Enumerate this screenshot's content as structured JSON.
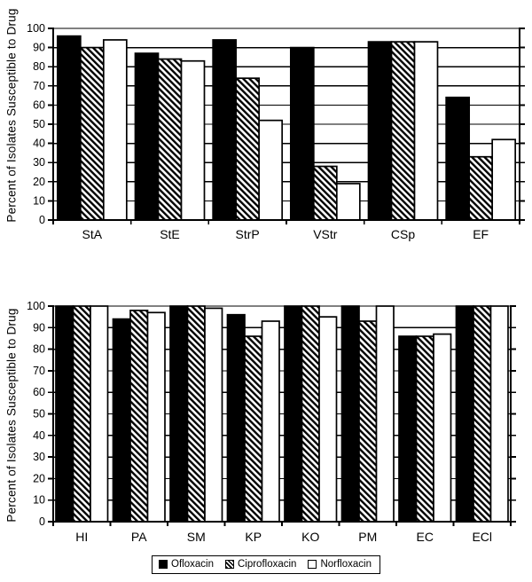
{
  "figure": {
    "background": "#ffffff",
    "ink_color": "#000000",
    "legend": {
      "items": [
        {
          "name": "Ofloxacin",
          "swatch": "solid-black"
        },
        {
          "name": "Ciprofloxacin",
          "swatch": "diagonal-hatch"
        },
        {
          "name": "Norfloxacin",
          "swatch": "open-white"
        }
      ]
    }
  },
  "chart_data": [
    {
      "type": "bar",
      "title": "",
      "xlabel": "",
      "ylabel": "Percent of Isolates Susceptible to Drug",
      "ylim": [
        0,
        100
      ],
      "ytick_interval": 10,
      "grid": true,
      "legend_position": "below-figure",
      "categories": [
        "StA",
        "StE",
        "StrP",
        "VStr",
        "CSp",
        "EF"
      ],
      "series": [
        {
          "name": "Ofloxacin",
          "fill": "solid-black",
          "values": [
            96,
            87,
            94,
            90,
            93,
            64
          ]
        },
        {
          "name": "Ciprofloxacin",
          "fill": "diagonal-hatch",
          "values": [
            90,
            84,
            74,
            28,
            93,
            33
          ]
        },
        {
          "name": "Norfloxacin",
          "fill": "open-white",
          "values": [
            94,
            83,
            52,
            19,
            93,
            42
          ]
        }
      ]
    },
    {
      "type": "bar",
      "title": "",
      "xlabel": "",
      "ylabel": "Percent of Isolates Susceptible to Drug",
      "ylim": [
        0,
        100
      ],
      "ytick_interval": 10,
      "grid": true,
      "legend_position": "below-figure",
      "categories": [
        "HI",
        "PA",
        "SM",
        "KP",
        "KO",
        "PM",
        "EC",
        "ECl"
      ],
      "series": [
        {
          "name": "Ofloxacin",
          "fill": "solid-black",
          "values": [
            100,
            94,
            100,
            96,
            100,
            100,
            86,
            100
          ]
        },
        {
          "name": "Ciprofloxacin",
          "fill": "diagonal-hatch",
          "values": [
            100,
            98,
            100,
            86,
            100,
            93,
            86,
            100
          ]
        },
        {
          "name": "Norfloxacin",
          "fill": "open-white",
          "values": [
            100,
            97,
            99,
            93,
            95,
            100,
            87,
            100
          ]
        }
      ]
    }
  ]
}
